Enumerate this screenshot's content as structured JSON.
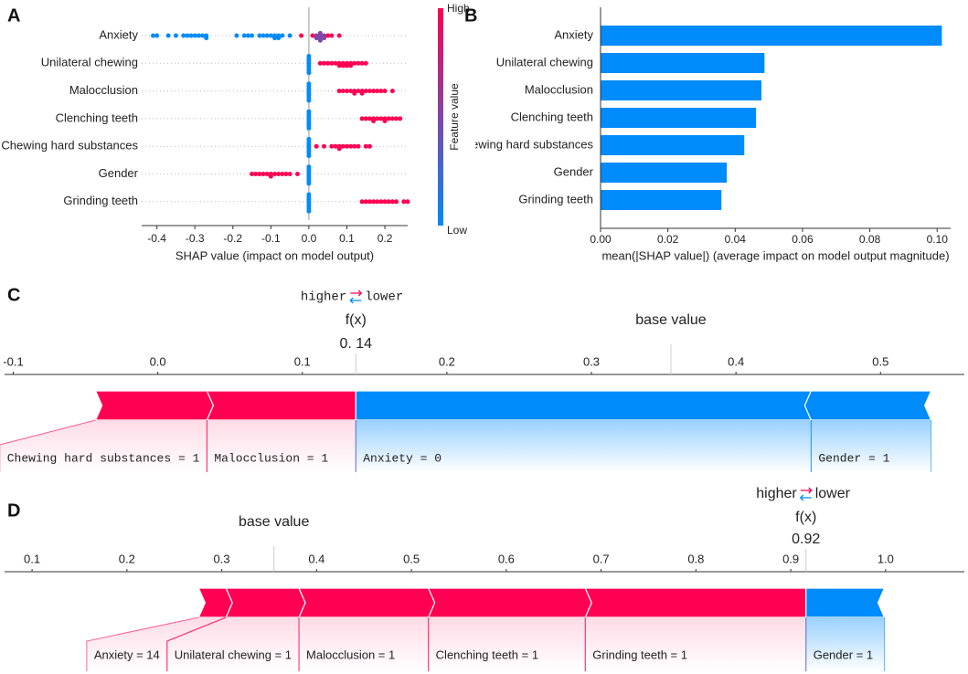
{
  "chart_data": [
    {
      "panel": "A",
      "type": "beeswarm",
      "categories": [
        "Anxiety",
        "Unilateral chewing",
        "Malocclusion",
        "Clenching teeth",
        "Chewing hard substances",
        "Gender",
        "Grinding teeth"
      ],
      "values": [
        [
          -0.41,
          -0.4,
          -0.37,
          -0.35,
          -0.33,
          -0.32,
          -0.31,
          -0.3,
          -0.29,
          -0.28,
          -0.27,
          -0.27,
          -0.19,
          -0.17,
          -0.16,
          -0.15,
          -0.13,
          -0.12,
          -0.11,
          -0.1,
          -0.09,
          -0.09,
          -0.08,
          -0.08,
          -0.07,
          -0.05,
          -0.02,
          0.01,
          0.02,
          0.02,
          0.03,
          0.03,
          0.03,
          0.03,
          0.04,
          0.04,
          0.05,
          0.06,
          0.08
        ],
        [
          0,
          0,
          0,
          0,
          0,
          0,
          0,
          0,
          0.03,
          0.04,
          0.05,
          0.06,
          0.07,
          0.08,
          0.08,
          0.09,
          0.09,
          0.1,
          0.1,
          0.11,
          0.11,
          0.12,
          0.13,
          0.14,
          0.15
        ],
        [
          0,
          0,
          0,
          0,
          0,
          0,
          0,
          0,
          0.08,
          0.09,
          0.1,
          0.11,
          0.12,
          0.12,
          0.13,
          0.14,
          0.14,
          0.15,
          0.16,
          0.17,
          0.18,
          0.19,
          0.2,
          0.22
        ],
        [
          0,
          0,
          0,
          0,
          0,
          0,
          0,
          0,
          0.14,
          0.15,
          0.16,
          0.17,
          0.17,
          0.18,
          0.19,
          0.2,
          0.2,
          0.21,
          0.22,
          0.23,
          0.24
        ],
        [
          0,
          0,
          0,
          0,
          0,
          0,
          0,
          0,
          0.02,
          0.04,
          0.06,
          0.07,
          0.08,
          0.08,
          0.09,
          0.1,
          0.11,
          0.12,
          0.13,
          0.15,
          0.16
        ],
        [
          0,
          0,
          0,
          0,
          0,
          0,
          0,
          0,
          -0.15,
          -0.14,
          -0.13,
          -0.12,
          -0.11,
          -0.1,
          -0.1,
          -0.09,
          -0.08,
          -0.07,
          -0.06,
          -0.05,
          -0.03
        ],
        [
          0,
          0,
          0,
          0,
          0,
          0,
          0,
          0,
          0.14,
          0.15,
          0.16,
          0.17,
          0.18,
          0.19,
          0.2,
          0.21,
          0.22,
          0.23,
          0.25,
          0.26
        ]
      ],
      "feature_values": [
        [
          0,
          0,
          0,
          0,
          0,
          0,
          0,
          0,
          0,
          0,
          0,
          0,
          0,
          0,
          0,
          0,
          0,
          0,
          0,
          0,
          0,
          0,
          0,
          0,
          0,
          0,
          1,
          1,
          0.5,
          0.5,
          0.5,
          0.5,
          0.5,
          0.5,
          0.5,
          0.5,
          1,
          1,
          1
        ],
        [
          0,
          0,
          0,
          0,
          0,
          0,
          0,
          0,
          1,
          1,
          1,
          1,
          1,
          1,
          1,
          1,
          1,
          1,
          1,
          1,
          1,
          1,
          1,
          1,
          1
        ],
        [
          0,
          0,
          0,
          0,
          0,
          0,
          0,
          0,
          1,
          1,
          1,
          1,
          1,
          1,
          1,
          1,
          1,
          1,
          1,
          1,
          1,
          1,
          1,
          1
        ],
        [
          0,
          0,
          0,
          0,
          0,
          0,
          0,
          0,
          1,
          1,
          1,
          1,
          1,
          1,
          1,
          1,
          1,
          1,
          1,
          1,
          1
        ],
        [
          0,
          0,
          0,
          0,
          0,
          0,
          0,
          0,
          1,
          1,
          1,
          1,
          1,
          1,
          1,
          1,
          1,
          1,
          1,
          1,
          1
        ],
        [
          0,
          0,
          0,
          0,
          0,
          0,
          0,
          0,
          1,
          1,
          1,
          1,
          1,
          1,
          1,
          1,
          1,
          1,
          1,
          1,
          1
        ],
        [
          0,
          0,
          0,
          0,
          0,
          0,
          0,
          0,
          1,
          1,
          1,
          1,
          1,
          1,
          1,
          1,
          1,
          1,
          1,
          1
        ]
      ],
      "xlim": [
        -0.44,
        0.26
      ],
      "xticks": [
        -0.4,
        -0.3,
        -0.2,
        -0.1,
        {
          "value": 0,
          "label": "0.0"
        },
        0.1,
        0.2
      ],
      "xlabel": "SHAP value (impact on model output)",
      "colorbar": {
        "title": "Feature value",
        "high": "High",
        "low": "Low",
        "high_color": "#ff0052",
        "low_color": "#008bfb"
      }
    },
    {
      "panel": "B",
      "type": "barh",
      "categories": [
        "Anxiety",
        "Unilateral chewing",
        "Malocclusion",
        "Clenching teeth",
        "Chewing hard substances",
        "Gender",
        "Grinding teeth"
      ],
      "values": [
        0.1014,
        0.0487,
        0.0478,
        0.0462,
        0.0427,
        0.0375,
        0.0359
      ],
      "color": "#008bfb",
      "xlim": [
        0,
        0.104
      ],
      "xticks": [
        {
          "value": 0,
          "label": "0.00"
        },
        0.02,
        0.04,
        0.06,
        0.08,
        {
          "value": 0.1,
          "label": "0.10"
        }
      ],
      "xlabel": "mean(|SHAP value|) (average impact on model output magnitude)"
    },
    {
      "panel": "C",
      "type": "force",
      "higher": "higher",
      "lower": "lower",
      "fx_label": "f(x)",
      "fx": 0.137,
      "fx_value_label": "0. 14",
      "base_label": "base value",
      "base_value": 0.355,
      "features": [
        {
          "label": "Chewing hard substances = 1",
          "value": 0.077
        },
        {
          "label": "Malocclusion = 1",
          "value": 0.103
        },
        {
          "label": "Anxiety = 0",
          "value": -0.315
        },
        {
          "label": "Gender = 1",
          "value": -0.083
        }
      ],
      "positive_color": "#ff0052",
      "negative_color": "#008bfb",
      "xlim": [
        -0.106,
        0.558
      ],
      "xticks": [
        -0.1,
        {
          "value": 0,
          "label": "0.0"
        },
        0.1,
        0.2,
        0.3,
        0.4,
        0.5
      ]
    },
    {
      "panel": "D",
      "type": "force",
      "higher": "higher",
      "lower": "lower",
      "fx_label": "f(x)",
      "fx": 0.916,
      "fx_value_label": "0.92",
      "base_label": "base value",
      "base_value": 0.355,
      "features": [
        {
          "label": "Anxiety = 14",
          "value": 0.0288
        },
        {
          "label": "Unilateral chewing = 1",
          "value": 0.0769
        },
        {
          "label": "Malocclusion = 1",
          "value": 0.1365
        },
        {
          "label": "Clenching teeth = 1",
          "value": 0.1654
        },
        {
          "label": "Grinding teeth = 1",
          "value": 0.2327
        },
        {
          "label": "Gender = 1",
          "value": -0.0827
        }
      ],
      "positive_color": "#ff0052",
      "negative_color": "#008bfb",
      "xlim": [
        0.071,
        1.083
      ],
      "xticks": [
        0.1,
        0.2,
        0.3,
        0.4,
        0.5,
        0.6,
        0.7,
        0.8,
        0.9,
        {
          "value": 1,
          "label": "1.0"
        }
      ]
    }
  ]
}
